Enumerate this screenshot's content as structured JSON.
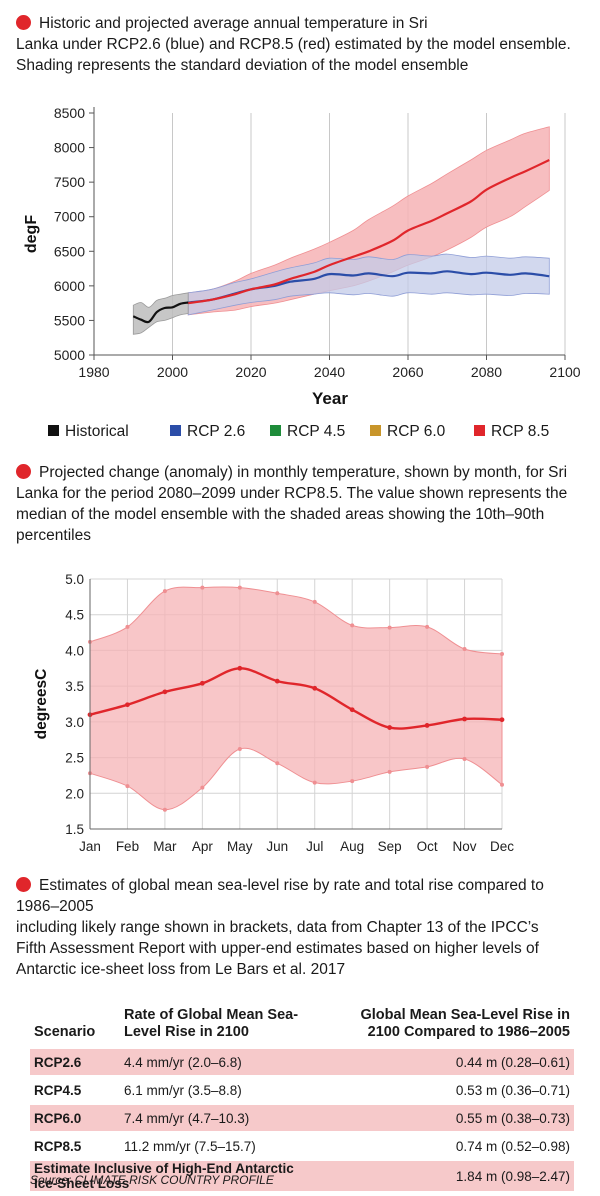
{
  "caption1": {
    "lines": [
      "Historic and projected average annual temperature in Sri",
      "Lanka under RCP2.6 (blue) and RCP8.5 (red) estimated by the model ensemble.",
      "Shading represents the standard deviation of the model ensemble"
    ]
  },
  "caption2": {
    "lines": [
      "Projected change (anomaly) in monthly temperature, shown by month, for Sri",
      "Lanka for the period 2080–2099 under RCP8.5. The value shown represents the",
      "median of the model ensemble with the shaded areas showing the 10th–90th",
      "percentiles"
    ]
  },
  "caption3": {
    "lines": [
      "Estimates of global mean sea-level rise by rate and total rise compared to",
      "1986–2005",
      "including likely range shown in brackets, data from Chapter 13 of the IPCC’s",
      "Fifth Assessment Report with upper-end estimates based on higher levels of",
      "Antarctic ice-sheet loss from Le Bars et al. 2017"
    ]
  },
  "colors": {
    "accent": "#e0262b",
    "historical": "#111111",
    "rcp26": "#2b4da8",
    "rcp45": "#1e8c3a",
    "rcp60": "#c8952a",
    "rcp85": "#e0262b",
    "band_red": "#f6b3b5",
    "band_blue": "#c3cbe8",
    "band_gray": "#bdbdbd",
    "grid": "#c8c8c8"
  },
  "chart_data": [
    {
      "type": "line",
      "title": "",
      "xlabel": "Year",
      "ylabel": "degF",
      "xlim": [
        1980,
        2100
      ],
      "ylim": [
        5000,
        8500
      ],
      "xticks": [
        1980,
        2000,
        2020,
        2040,
        2060,
        2080,
        2100
      ],
      "yticks": [
        5000,
        5500,
        6000,
        6500,
        7000,
        7500,
        8000,
        8500
      ],
      "grid": "vertical",
      "legend": {
        "placement": "bottom",
        "entries": [
          "Historical",
          "RCP 2.6",
          "RCP 4.5",
          "RCP 6.0",
          "RCP 8.5"
        ]
      },
      "series": [
        {
          "name": "Historical",
          "x": [
            1990,
            1992,
            1994,
            1996,
            1998,
            2000,
            2002,
            2004
          ],
          "values": [
            5560,
            5510,
            5480,
            5620,
            5680,
            5690,
            5740,
            5760
          ],
          "band_lower": [
            5300,
            5320,
            5400,
            5480,
            5500,
            5540,
            5580,
            5600
          ],
          "band_upper": [
            5720,
            5760,
            5690,
            5790,
            5820,
            5860,
            5880,
            5900
          ]
        },
        {
          "name": "RCP 2.6",
          "x": [
            2004,
            2010,
            2016,
            2020,
            2026,
            2030,
            2036,
            2040,
            2046,
            2050,
            2056,
            2060,
            2066,
            2070,
            2076,
            2080,
            2086,
            2090,
            2096
          ],
          "values": [
            5760,
            5800,
            5890,
            5950,
            6000,
            6060,
            6100,
            6170,
            6150,
            6180,
            6140,
            6190,
            6180,
            6210,
            6170,
            6190,
            6160,
            6180,
            6140
          ],
          "band_lower": [
            5580,
            5650,
            5720,
            5760,
            5800,
            5850,
            5880,
            5900,
            5870,
            5890,
            5850,
            5900,
            5880,
            5900,
            5870,
            5880,
            5860,
            5890,
            5880
          ],
          "band_upper": [
            5900,
            5950,
            6050,
            6100,
            6200,
            6260,
            6330,
            6400,
            6380,
            6420,
            6380,
            6450,
            6430,
            6460,
            6410,
            6430,
            6400,
            6420,
            6400
          ]
        },
        {
          "name": "RCP 8.5",
          "x": [
            2004,
            2010,
            2016,
            2020,
            2026,
            2030,
            2036,
            2040,
            2046,
            2050,
            2056,
            2060,
            2066,
            2070,
            2076,
            2080,
            2086,
            2090,
            2096
          ],
          "values": [
            5750,
            5800,
            5880,
            5950,
            6020,
            6100,
            6200,
            6300,
            6420,
            6500,
            6650,
            6800,
            6940,
            7050,
            7220,
            7390,
            7560,
            7660,
            7820
          ],
          "band_lower": [
            5580,
            5620,
            5650,
            5700,
            5750,
            5800,
            5880,
            5930,
            6000,
            6070,
            6200,
            6300,
            6420,
            6520,
            6700,
            6850,
            7000,
            7150,
            7380
          ],
          "band_upper": [
            5900,
            5950,
            6070,
            6180,
            6300,
            6400,
            6530,
            6630,
            6800,
            6960,
            7150,
            7300,
            7480,
            7620,
            7820,
            7960,
            8110,
            8210,
            8300
          ]
        }
      ]
    },
    {
      "type": "line",
      "title": "",
      "xlabel": "",
      "ylabel": "degreesC",
      "categories": [
        "Jan",
        "Feb",
        "Mar",
        "Apr",
        "May",
        "Jun",
        "Jul",
        "Aug",
        "Sep",
        "Oct",
        "Nov",
        "Dec"
      ],
      "ylim": [
        1.5,
        5.0
      ],
      "yticks": [
        "1.5",
        "2.0",
        "2.5",
        "3.0",
        "3.5",
        "4.0",
        "4.5",
        "5.0"
      ],
      "grid": "both",
      "series": [
        {
          "name": "",
          "values": [
            3.1,
            3.24,
            3.42,
            3.54,
            3.75,
            3.57,
            3.47,
            3.17,
            2.92,
            2.95,
            3.04,
            3.03
          ]
        }
      ],
      "band_upper": [
        4.12,
        4.33,
        4.83,
        4.88,
        4.88,
        4.8,
        4.68,
        4.35,
        4.32,
        4.33,
        4.02,
        3.95
      ],
      "band_lower": [
        2.28,
        2.1,
        1.77,
        2.08,
        2.62,
        2.42,
        2.15,
        2.17,
        2.3,
        2.37,
        2.48,
        2.12
      ]
    }
  ],
  "table": {
    "headers": [
      "Scenario",
      "Rate of Global Mean Sea-Level Rise in 2100",
      "Global Mean Sea-Level Rise in 2100 Compared to 1986–2005"
    ],
    "rows": [
      {
        "scenario": "RCP2.6",
        "rate": "4.4 mm/yr (2.0–6.8)",
        "rise": "0.44 m (0.28–0.61)"
      },
      {
        "scenario": "RCP4.5",
        "rate": "6.1 mm/yr (3.5–8.8)",
        "rise": "0.53 m (0.36–0.71)"
      },
      {
        "scenario": "RCP6.0",
        "rate": "7.4 mm/yr (4.7–10.3)",
        "rise": "0.55 m (0.38–0.73)"
      },
      {
        "scenario": "RCP8.5",
        "rate": "11.2 mm/yr (7.5–15.7)",
        "rise": "0.74 m (0.52–0.98)"
      },
      {
        "scenario": "Estimate Inclusive of High-End Antarctic Ice-Sheet Loss",
        "rate": "",
        "rise": "1.84 m (0.98–2.47)"
      }
    ]
  },
  "source": "Source: CLIMATE RISK COUNTRY PROFILE"
}
